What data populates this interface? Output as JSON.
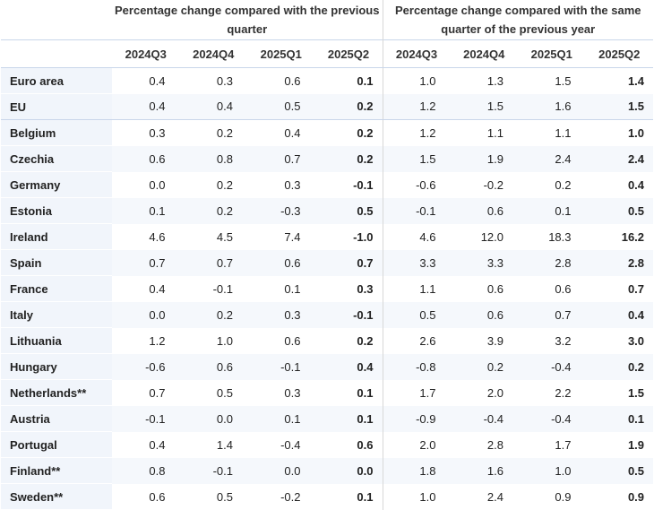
{
  "header": {
    "group1": "Percentage change compared with the previous quarter",
    "group2": "Percentage change compared with the same quarter of the previous year",
    "periods": [
      "2024Q3",
      "2024Q4",
      "2025Q1",
      "2025Q2",
      "2024Q3",
      "2024Q4",
      "2025Q1",
      "2025Q2"
    ]
  },
  "rows": [
    {
      "country": "Euro area",
      "values": [
        "0.4",
        "0.3",
        "0.6",
        "0.1",
        "1.0",
        "1.3",
        "1.5",
        "1.4"
      ]
    },
    {
      "country": "EU",
      "values": [
        "0.4",
        "0.4",
        "0.5",
        "0.2",
        "1.2",
        "1.5",
        "1.6",
        "1.5"
      ]
    },
    {
      "country": "Belgium",
      "values": [
        "0.3",
        "0.2",
        "0.4",
        "0.2",
        "1.2",
        "1.1",
        "1.1",
        "1.0"
      ]
    },
    {
      "country": "Czechia",
      "values": [
        "0.6",
        "0.8",
        "0.7",
        "0.2",
        "1.5",
        "1.9",
        "2.4",
        "2.4"
      ]
    },
    {
      "country": "Germany",
      "values": [
        "0.0",
        "0.2",
        "0.3",
        "-0.1",
        "-0.6",
        "-0.2",
        "0.2",
        "0.4"
      ]
    },
    {
      "country": "Estonia",
      "values": [
        "0.1",
        "0.2",
        "-0.3",
        "0.5",
        "-0.1",
        "0.6",
        "0.1",
        "0.5"
      ]
    },
    {
      "country": "Ireland",
      "values": [
        "4.6",
        "4.5",
        "7.4",
        "-1.0",
        "4.6",
        "12.0",
        "18.3",
        "16.2"
      ]
    },
    {
      "country": "Spain",
      "values": [
        "0.7",
        "0.7",
        "0.6",
        "0.7",
        "3.3",
        "3.3",
        "2.8",
        "2.8"
      ]
    },
    {
      "country": "France",
      "values": [
        "0.4",
        "-0.1",
        "0.1",
        "0.3",
        "1.1",
        "0.6",
        "0.6",
        "0.7"
      ]
    },
    {
      "country": "Italy",
      "values": [
        "0.0",
        "0.2",
        "0.3",
        "-0.1",
        "0.5",
        "0.6",
        "0.7",
        "0.4"
      ]
    },
    {
      "country": "Lithuania",
      "values": [
        "1.2",
        "1.0",
        "0.6",
        "0.2",
        "2.6",
        "3.9",
        "3.2",
        "3.0"
      ]
    },
    {
      "country": "Hungary",
      "values": [
        "-0.6",
        "0.6",
        "-0.1",
        "0.4",
        "-0.8",
        "0.2",
        "-0.4",
        "0.2"
      ]
    },
    {
      "country": "Netherlands**",
      "values": [
        "0.7",
        "0.5",
        "0.3",
        "0.1",
        "1.7",
        "2.0",
        "2.2",
        "1.5"
      ]
    },
    {
      "country": "Austria",
      "values": [
        "-0.1",
        "0.0",
        "0.1",
        "0.1",
        "-0.9",
        "-0.4",
        "-0.4",
        "0.1"
      ]
    },
    {
      "country": "Portugal",
      "values": [
        "0.4",
        "1.4",
        "-0.4",
        "0.6",
        "2.0",
        "2.8",
        "1.7",
        "1.9"
      ]
    },
    {
      "country": "Finland**",
      "values": [
        "0.8",
        "-0.1",
        "0.0",
        "0.0",
        "1.8",
        "1.6",
        "1.0",
        "0.5"
      ]
    },
    {
      "country": "Sweden**",
      "values": [
        "0.6",
        "0.5",
        "-0.2",
        "0.1",
        "1.0",
        "2.4",
        "0.9",
        "0.9"
      ]
    }
  ]
}
